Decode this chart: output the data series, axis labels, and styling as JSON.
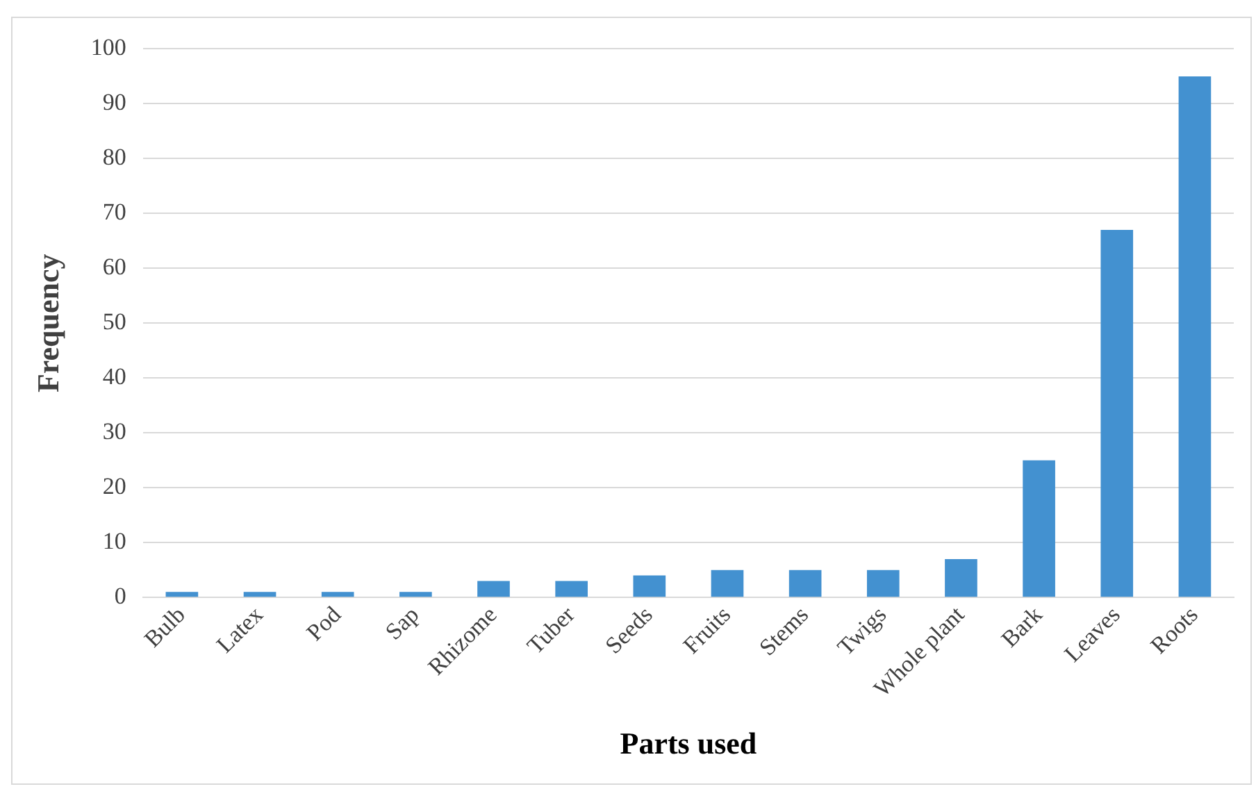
{
  "chart_data": {
    "type": "bar",
    "xlabel": "Parts used",
    "ylabel": "Frequency",
    "categories": [
      "Bulb",
      "Latex",
      "Pod",
      "Sap",
      "Rhizome",
      "Tuber",
      "Seeds",
      "Fruits",
      "Stems",
      "Twigs",
      "Whole plant",
      "Bark",
      "Leaves",
      "Roots"
    ],
    "values": [
      1,
      1,
      1,
      1,
      3,
      3,
      4,
      5,
      5,
      5,
      7,
      25,
      67,
      95
    ],
    "color": "#4391d0",
    "ylim": [
      0,
      100
    ],
    "yticks": [
      0,
      10,
      20,
      30,
      40,
      50,
      60,
      70,
      80,
      90,
      100
    ],
    "grid": "y"
  }
}
